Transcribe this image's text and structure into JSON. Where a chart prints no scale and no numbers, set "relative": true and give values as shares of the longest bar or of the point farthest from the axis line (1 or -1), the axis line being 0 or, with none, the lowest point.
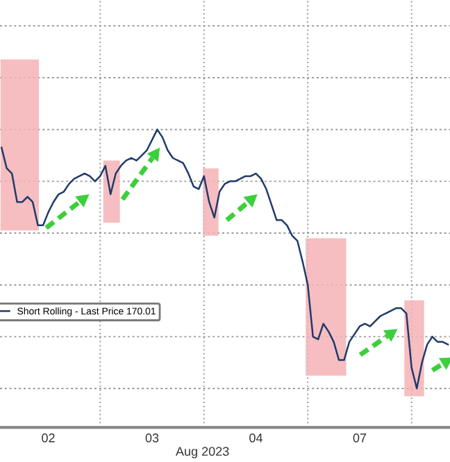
{
  "chart_data": {
    "type": "line",
    "relative": true,
    "xlabel": "Aug 2023",
    "categories": [
      null,
      null,
      null,
      null,
      null,
      null,
      null,
      null,
      null,
      "02",
      null,
      null,
      null,
      null,
      null,
      null,
      null,
      null,
      null,
      null,
      null,
      null,
      null,
      null,
      null,
      null,
      null,
      null,
      null,
      "03",
      null,
      null,
      null,
      null,
      null,
      null,
      null,
      null,
      null,
      null,
      null,
      null,
      null,
      null,
      null,
      null,
      null,
      null,
      null,
      "04",
      null,
      null,
      null,
      null,
      null,
      null,
      null,
      null,
      null,
      null,
      null,
      null,
      null,
      null,
      null,
      null,
      null,
      null,
      null,
      "07",
      null,
      null,
      null,
      null,
      null,
      null,
      null,
      null,
      null,
      null,
      null,
      null,
      null,
      null,
      null,
      null,
      null
    ],
    "grid": true,
    "legend": "left",
    "series": [
      {
        "name": "Short Rolling - Last Price 170.01",
        "color": "#1f3a6b",
        "values": [
          0.93,
          0.85,
          0.83,
          0.72,
          0.72,
          0.74,
          0.72,
          0.63,
          0.63,
          0.68,
          0.72,
          0.75,
          0.76,
          0.79,
          0.81,
          0.82,
          0.83,
          0.82,
          0.8,
          0.82,
          0.86,
          0.75,
          0.83,
          0.86,
          0.88,
          0.89,
          0.88,
          0.9,
          0.92,
          0.96,
          1.0,
          0.97,
          0.92,
          0.89,
          0.88,
          0.87,
          0.83,
          0.78,
          0.77,
          0.82,
          0.72,
          0.66,
          0.76,
          0.79,
          0.8,
          0.8,
          0.81,
          0.82,
          0.82,
          0.83,
          0.81,
          0.77,
          0.71,
          0.65,
          0.65,
          0.63,
          0.59,
          0.57,
          0.49,
          0.4,
          0.2,
          0.19,
          0.25,
          0.22,
          0.18,
          0.11,
          0.11,
          0.18,
          0.21,
          0.24,
          0.25,
          0.24,
          0.26,
          0.28,
          0.29,
          0.3,
          0.31,
          0.31,
          0.29,
          0.08,
          0.0,
          0.1,
          0.17,
          0.2,
          0.18,
          0.18,
          0.17
        ]
      }
    ]
  }
}
